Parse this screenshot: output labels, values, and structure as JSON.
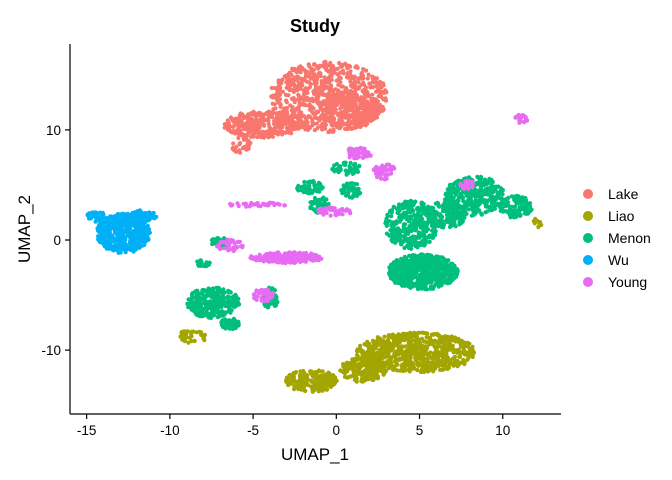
{
  "chart_data": {
    "type": "scatter",
    "title": "Study",
    "xlabel": "UMAP_1",
    "ylabel": "UMAP_2",
    "xlim": [
      -16,
      13.5
    ],
    "ylim": [
      -15.8,
      17.8
    ],
    "xticks": [
      -15,
      -10,
      -5,
      0,
      5,
      10
    ],
    "yticks": [
      -10,
      0,
      10
    ],
    "grid": false,
    "legend_position": "right",
    "series": [
      {
        "name": "Lake",
        "color": "#F8766D",
        "clusters": [
          {
            "cx": -0.5,
            "cy": 13.0,
            "rx": 3.6,
            "ry": 3.2,
            "n": 700
          },
          {
            "cx": -4.4,
            "cy": 10.5,
            "rx": 2.4,
            "ry": 1.2,
            "n": 320
          },
          {
            "cx": 0.8,
            "cy": 11.8,
            "rx": 1.8,
            "ry": 1.7,
            "n": 260
          },
          {
            "cx": -5.7,
            "cy": 8.6,
            "rx": 0.6,
            "ry": 0.8,
            "n": 30
          }
        ]
      },
      {
        "name": "Liao",
        "color": "#A3A500",
        "clusters": [
          {
            "cx": 4.8,
            "cy": -10.2,
            "rx": 3.6,
            "ry": 1.8,
            "n": 700
          },
          {
            "cx": -1.5,
            "cy": -12.8,
            "rx": 1.6,
            "ry": 1.0,
            "n": 200
          },
          {
            "cx": 1.6,
            "cy": -11.8,
            "rx": 1.4,
            "ry": 1.1,
            "n": 160
          },
          {
            "cx": -8.7,
            "cy": -8.8,
            "rx": 0.9,
            "ry": 0.6,
            "n": 40
          },
          {
            "cx": 12.1,
            "cy": 1.7,
            "rx": 0.3,
            "ry": 0.6,
            "n": 10
          }
        ]
      },
      {
        "name": "Menon",
        "color": "#00BF7D",
        "clusters": [
          {
            "cx": 5.2,
            "cy": -2.9,
            "rx": 2.1,
            "ry": 1.6,
            "n": 600
          },
          {
            "cx": 8.3,
            "cy": 4.0,
            "rx": 1.8,
            "ry": 1.8,
            "n": 320
          },
          {
            "cx": 4.5,
            "cy": 1.4,
            "rx": 1.6,
            "ry": 2.2,
            "n": 340
          },
          {
            "cx": 6.6,
            "cy": 2.3,
            "rx": 1.2,
            "ry": 1.2,
            "n": 160
          },
          {
            "cx": 10.8,
            "cy": 3.0,
            "rx": 1.0,
            "ry": 1.0,
            "n": 120
          },
          {
            "cx": -7.4,
            "cy": -5.7,
            "rx": 1.6,
            "ry": 1.4,
            "n": 300
          },
          {
            "cx": -6.4,
            "cy": -7.6,
            "rx": 0.6,
            "ry": 0.5,
            "n": 50
          },
          {
            "cx": -4.0,
            "cy": -5.3,
            "rx": 0.5,
            "ry": 1.0,
            "n": 60
          },
          {
            "cx": -1.6,
            "cy": 4.8,
            "rx": 0.9,
            "ry": 0.6,
            "n": 60
          },
          {
            "cx": -1.0,
            "cy": 3.2,
            "rx": 0.6,
            "ry": 0.8,
            "n": 50
          },
          {
            "cx": 0.6,
            "cy": 6.5,
            "rx": 0.9,
            "ry": 0.6,
            "n": 50
          },
          {
            "cx": 0.9,
            "cy": 4.5,
            "rx": 0.6,
            "ry": 0.7,
            "n": 50
          },
          {
            "cx": -7.0,
            "cy": -0.2,
            "rx": 0.6,
            "ry": 0.4,
            "n": 30
          },
          {
            "cx": -8.0,
            "cy": -2.1,
            "rx": 0.5,
            "ry": 0.3,
            "n": 20
          }
        ]
      },
      {
        "name": "Wu",
        "color": "#00B0F6",
        "clusters": [
          {
            "cx": -12.8,
            "cy": 0.6,
            "rx": 1.6,
            "ry": 1.8,
            "n": 450
          },
          {
            "cx": -14.4,
            "cy": 2.1,
            "rx": 0.6,
            "ry": 0.5,
            "n": 40
          },
          {
            "cx": -11.7,
            "cy": 2.2,
            "rx": 0.9,
            "ry": 0.5,
            "n": 60
          }
        ]
      },
      {
        "name": "Young",
        "color": "#E76BF3",
        "clusters": [
          {
            "cx": -3.0,
            "cy": -1.6,
            "rx": 2.2,
            "ry": 0.5,
            "n": 200
          },
          {
            "cx": -4.4,
            "cy": -5.0,
            "rx": 0.6,
            "ry": 0.6,
            "n": 50
          },
          {
            "cx": -6.4,
            "cy": -0.5,
            "rx": 0.8,
            "ry": 0.6,
            "n": 40
          },
          {
            "cx": 1.3,
            "cy": 7.9,
            "rx": 0.9,
            "ry": 0.5,
            "n": 60
          },
          {
            "cx": 2.9,
            "cy": 6.2,
            "rx": 0.7,
            "ry": 0.7,
            "n": 50
          },
          {
            "cx": -0.1,
            "cy": 2.6,
            "rx": 1.1,
            "ry": 0.4,
            "n": 40
          },
          {
            "cx": -4.7,
            "cy": 3.2,
            "rx": 1.8,
            "ry": 0.2,
            "n": 40
          },
          {
            "cx": 11.1,
            "cy": 11.0,
            "rx": 0.4,
            "ry": 0.4,
            "n": 20
          },
          {
            "cx": 7.8,
            "cy": 5.0,
            "rx": 0.5,
            "ry": 0.4,
            "n": 20
          }
        ]
      }
    ]
  }
}
